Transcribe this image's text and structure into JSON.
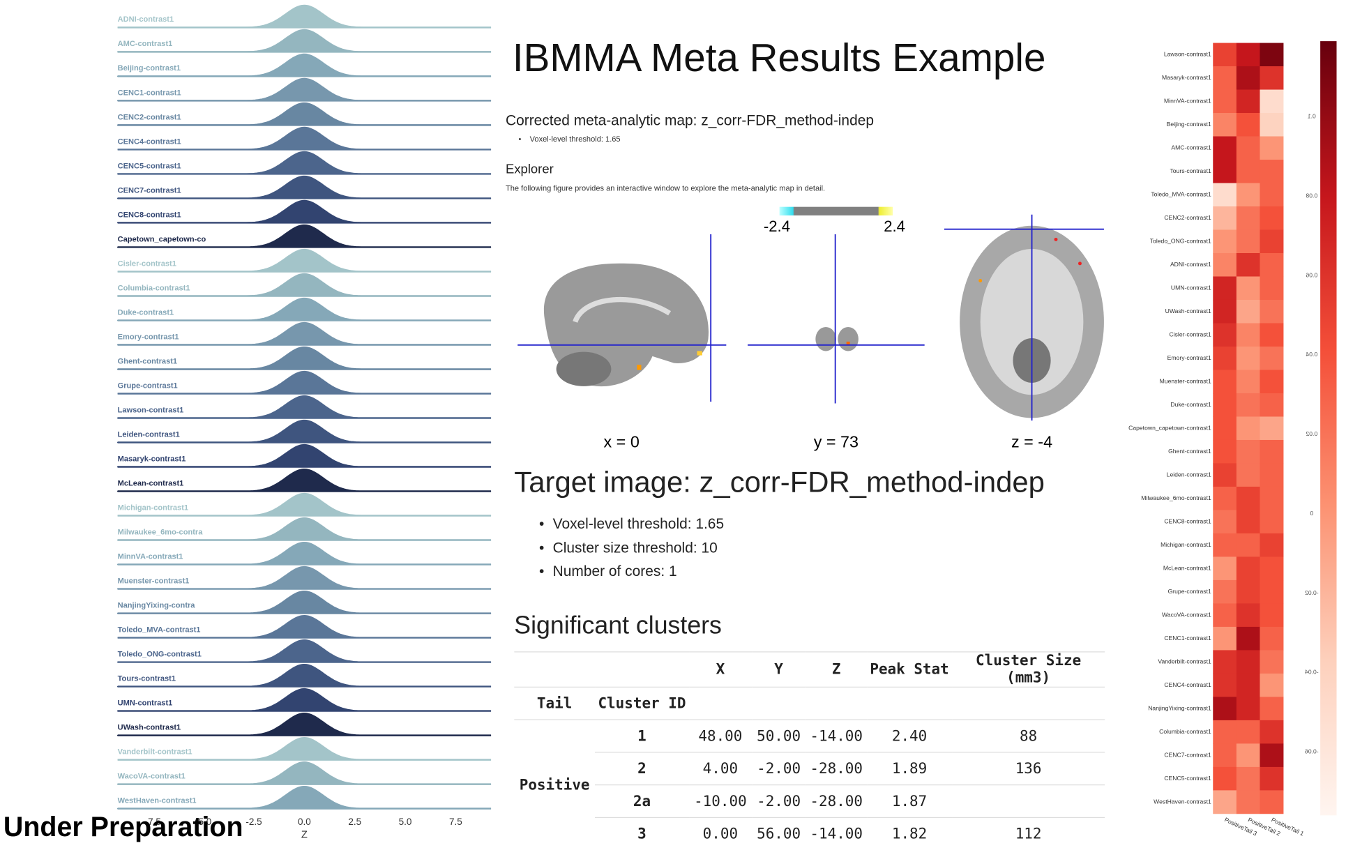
{
  "title": "IBMMA Meta Results Example",
  "corrected_map": {
    "heading": "Corrected meta-analytic map: z_corr-FDR_method-indep",
    "bullets": [
      "Voxel-level threshold: 1.65"
    ]
  },
  "explorer": {
    "heading": "Explorer",
    "description": "The following figure provides an interactive window to explore the meta-analytic map in detail.",
    "colorbar_min": "-2.4",
    "colorbar_max": "2.4",
    "slices": [
      "x = 0",
      "y = 73",
      "z = -4"
    ]
  },
  "target": {
    "heading": "Target image: z_corr-FDR_method-indep",
    "bullets": [
      "Voxel-level threshold: 1.65",
      "Cluster size threshold: 10",
      "Number of cores: 1"
    ]
  },
  "clusters": {
    "heading": "Significant clusters",
    "header_top": [
      "X",
      "Y",
      "Z",
      "Peak Stat",
      "Cluster Size (mm3)"
    ],
    "header_bottom": [
      "Tail",
      "Cluster ID"
    ],
    "tail": "Positive",
    "rows": [
      [
        "1",
        "48.00",
        "50.00",
        "-14.00",
        "2.40",
        "88"
      ],
      [
        "2",
        "4.00",
        "-2.00",
        "-28.00",
        "1.89",
        "136"
      ],
      [
        "2a",
        "-10.00",
        "-2.00",
        "-28.00",
        "1.87"
      ],
      [
        "3",
        "0.00",
        "56.00",
        "-14.00",
        "1.82",
        "112"
      ]
    ]
  },
  "note": "Under Preparation",
  "chart_data": [
    {
      "type": "ridgeline",
      "xlabel": "Z",
      "xlim": [
        -9.25,
        9.25
      ],
      "xticks": [
        {
          "value": -7.5,
          "label": "-7.5"
        },
        {
          "value": -5,
          "label": "-5.0"
        },
        {
          "value": -2.5,
          "label": "-2.5"
        },
        {
          "value": 0,
          "label": "0.0"
        },
        {
          "value": 2.5,
          "label": "2.5"
        },
        {
          "value": 5,
          "label": "5.0"
        },
        {
          "value": 7.5,
          "label": "7.5"
        }
      ],
      "series": [
        {
          "name": "ADNI-contrast1",
          "color": "#a3c4c9"
        },
        {
          "name": "AMC-contrast1",
          "color": "#94b6bf"
        },
        {
          "name": "Beijing-contrast1",
          "color": "#85a8b8"
        },
        {
          "name": "CENC1-contrast1",
          "color": "#7797ad"
        },
        {
          "name": "CENC2-contrast1",
          "color": "#6887a2"
        },
        {
          "name": "CENC4-contrast1",
          "color": "#5a7698"
        },
        {
          "name": "CENC5-contrast1",
          "color": "#4c658c"
        },
        {
          "name": "CENC7-contrast1",
          "color": "#3f557f"
        },
        {
          "name": "CENC8-contrast1",
          "color": "#324470"
        },
        {
          "name": "Capetown_capetown-co",
          "color": "#1f2a4c"
        },
        {
          "name": "Cisler-contrast1",
          "color": "#a3c4c9"
        },
        {
          "name": "Columbia-contrast1",
          "color": "#94b6bf"
        },
        {
          "name": "Duke-contrast1",
          "color": "#85a8b8"
        },
        {
          "name": "Emory-contrast1",
          "color": "#7797ad"
        },
        {
          "name": "Ghent-contrast1",
          "color": "#6887a2"
        },
        {
          "name": "Grupe-contrast1",
          "color": "#5a7698"
        },
        {
          "name": "Lawson-contrast1",
          "color": "#4c658c"
        },
        {
          "name": "Leiden-contrast1",
          "color": "#3f557f"
        },
        {
          "name": "Masaryk-contrast1",
          "color": "#324470"
        },
        {
          "name": "McLean-contrast1",
          "color": "#1f2a4c"
        },
        {
          "name": "Michigan-contrast1",
          "color": "#a3c4c9"
        },
        {
          "name": "Milwaukee_6mo-contra",
          "color": "#94b6bf"
        },
        {
          "name": "MinnVA-contrast1",
          "color": "#85a8b8"
        },
        {
          "name": "Muenster-contrast1",
          "color": "#7797ad"
        },
        {
          "name": "NanjingYixing-contra",
          "color": "#6887a2"
        },
        {
          "name": "Toledo_MVA-contrast1",
          "color": "#5a7698"
        },
        {
          "name": "Toledo_ONG-contrast1",
          "color": "#4c658c"
        },
        {
          "name": "Tours-contrast1",
          "color": "#3f557f"
        },
        {
          "name": "UMN-contrast1",
          "color": "#324470"
        },
        {
          "name": "UWash-contrast1",
          "color": "#1f2a4c"
        },
        {
          "name": "Vanderbilt-contrast1",
          "color": "#a3c4c9"
        },
        {
          "name": "WacoVA-contrast1",
          "color": "#94b6bf"
        },
        {
          "name": "WestHaven-contrast1",
          "color": "#85a8b8"
        }
      ]
    },
    {
      "type": "heatmap",
      "rows": [
        "Lawson-contrast1",
        "Masaryk-contrast1",
        "MinnVA-contrast1",
        "Beijing-contrast1",
        "AMC-contrast1",
        "Tours-contrast1",
        "Toledo_MVA-contrast1",
        "CENC2-contrast1",
        "Toledo_ONG-contrast1",
        "ADNI-contrast1",
        "UMN-contrast1",
        "UWash-contrast1",
        "Cisler-contrast1",
        "Emory-contrast1",
        "Muenster-contrast1",
        "Duke-contrast1",
        "Capetown_capetown-contrast1",
        "Ghent-contrast1",
        "Leiden-contrast1",
        "Milwaukee_6mo-contrast1",
        "CENC8-contrast1",
        "Michigan-contrast1",
        "McLean-contrast1",
        "Grupe-contrast1",
        "WacoVA-contrast1",
        "CENC1-contrast1",
        "Vanderbilt-contrast1",
        "CENC4-contrast1",
        "NanjingYixing-contrast1",
        "Columbia-contrast1",
        "CENC7-contrast1",
        "CENC5-contrast1",
        "WestHaven-contrast1"
      ],
      "columns": [
        "PositiveTail 3",
        "PositiveTail 2",
        "PositiveTail 1"
      ],
      "values": [
        [
          0.05,
          0.08,
          0.11
        ],
        [
          0.03,
          0.09,
          0.06
        ],
        [
          0.03,
          0.07,
          -0.05
        ],
        [
          0.01,
          0.04,
          -0.04
        ],
        [
          0.08,
          0.03,
          0.0
        ],
        [
          0.08,
          0.03,
          0.03
        ],
        [
          -0.05,
          0.0,
          0.03
        ],
        [
          -0.02,
          0.02,
          0.04
        ],
        [
          0.0,
          0.02,
          0.05
        ],
        [
          0.01,
          0.06,
          0.03
        ],
        [
          0.07,
          0.0,
          0.03
        ],
        [
          0.07,
          -0.01,
          0.02
        ],
        [
          0.06,
          0.01,
          0.04
        ],
        [
          0.05,
          0.0,
          0.02
        ],
        [
          0.04,
          0.01,
          0.04
        ],
        [
          0.04,
          0.02,
          0.03
        ],
        [
          0.04,
          0.0,
          -0.01
        ],
        [
          0.04,
          0.02,
          0.03
        ],
        [
          0.05,
          0.02,
          0.03
        ],
        [
          0.03,
          0.05,
          0.03
        ],
        [
          0.02,
          0.05,
          0.03
        ],
        [
          0.03,
          0.03,
          0.05
        ],
        [
          0.0,
          0.05,
          0.04
        ],
        [
          0.02,
          0.05,
          0.04
        ],
        [
          0.03,
          0.06,
          0.04
        ],
        [
          0.0,
          0.09,
          0.03
        ],
        [
          0.06,
          0.07,
          0.02
        ],
        [
          0.06,
          0.07,
          0.0
        ],
        [
          0.09,
          0.07,
          0.03
        ],
        [
          0.03,
          0.03,
          0.06
        ],
        [
          0.03,
          0.0,
          0.09
        ],
        [
          0.04,
          0.02,
          0.06
        ],
        [
          -0.01,
          0.02,
          0.03
        ]
      ],
      "clim": [
        -0.076,
        0.119
      ],
      "colormap": [
        "#fff5f0",
        "#fdd0bc",
        "#fc9272",
        "#f44f39",
        "#c5161c",
        "#67000d"
      ],
      "colorbar_ticks": [
        0.1,
        0.08,
        0.06,
        0.04,
        0.02,
        0,
        -0.02,
        -0.04,
        -0.06
      ]
    }
  ]
}
